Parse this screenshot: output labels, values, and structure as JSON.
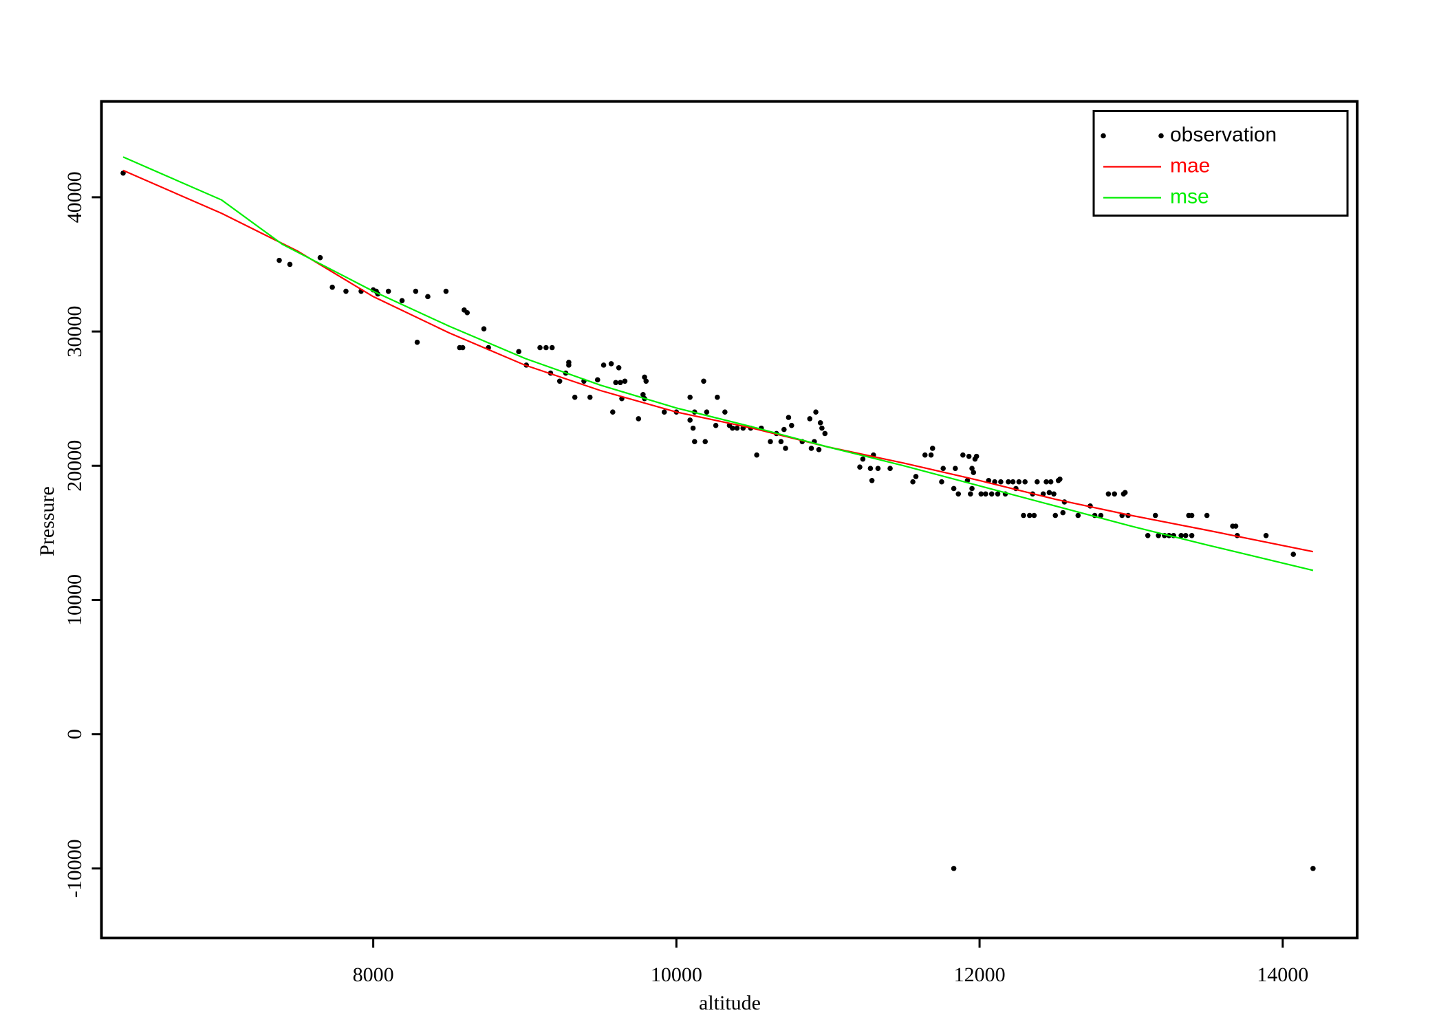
{
  "chart_data": {
    "type": "scatter",
    "x_label": "altitude",
    "y_label": "Pressure",
    "xlim": [
      6207,
      14491
    ],
    "ylim": [
      -15180,
      47140
    ],
    "xticks": [
      8000,
      10000,
      12000,
      14000
    ],
    "yticks": [
      -10000,
      0,
      10000,
      20000,
      30000,
      40000
    ],
    "legend_position": "upper right",
    "series": [
      {
        "name": "observation",
        "type": "scatter",
        "color": "#000000",
        "x": [
          6350,
          7380,
          7450,
          7650,
          7730,
          7820,
          7920,
          8000,
          8020,
          8030,
          8100,
          8190,
          8280,
          8290,
          8360,
          8480,
          8570,
          8590,
          8600,
          8620,
          8730,
          8760,
          8960,
          9010,
          9100,
          9140,
          9180,
          9170,
          9230,
          9270,
          9290,
          9290,
          9330,
          9390,
          9430,
          9480,
          9520,
          9570,
          9580,
          9600,
          9620,
          9630,
          9640,
          9660,
          9750,
          9780,
          9790,
          9790,
          9800,
          9920,
          10000,
          10090,
          10090,
          10110,
          10120,
          10120,
          10180,
          10190,
          10200,
          10260,
          10270,
          10320,
          10350,
          10370,
          10400,
          10440,
          10490,
          10530,
          10560,
          10620,
          10660,
          10690,
          10710,
          10720,
          10740,
          10760,
          10830,
          10880,
          10890,
          10910,
          10920,
          10940,
          10950,
          10960,
          10980,
          11210,
          11230,
          11280,
          11290,
          11300,
          11330,
          11410,
          11560,
          11580,
          11640,
          11680,
          11690,
          11750,
          11760,
          11830,
          11840,
          11860,
          11890,
          11920,
          11930,
          11940,
          11950,
          11950,
          11960,
          11970,
          11980,
          12010,
          12040,
          12060,
          12080,
          12100,
          12120,
          12140,
          12170,
          12190,
          12220,
          12240,
          12260,
          12290,
          12300,
          12330,
          12350,
          12360,
          12380,
          12420,
          12440,
          12460,
          12470,
          12490,
          12500,
          12520,
          12530,
          12550,
          12560,
          12650,
          12730,
          12760,
          12800,
          12850,
          12890,
          12940,
          12950,
          12960,
          12980,
          13110,
          13160,
          13180,
          13220,
          13250,
          13280,
          13330,
          13360,
          13380,
          13400,
          13400,
          13500,
          13670,
          13690,
          13700,
          13890,
          14070,
          11830,
          14200
        ],
        "values": [
          41800,
          35300,
          35000,
          35500,
          33300,
          33000,
          33000,
          33100,
          33000,
          32800,
          33000,
          32300,
          33000,
          29200,
          32600,
          33000,
          28800,
          28800,
          31600,
          31400,
          30200,
          28800,
          28500,
          27500,
          28800,
          28800,
          28800,
          26900,
          26300,
          26900,
          27500,
          27700,
          25100,
          26300,
          25100,
          26400,
          27500,
          27600,
          24000,
          26200,
          27300,
          26200,
          25000,
          26300,
          23500,
          25300,
          25000,
          26600,
          26300,
          24000,
          24000,
          23400,
          25100,
          22800,
          21800,
          24000,
          26300,
          21800,
          24000,
          23000,
          25100,
          24000,
          23000,
          22800,
          22800,
          22800,
          22800,
          20800,
          22800,
          21800,
          22400,
          21800,
          22700,
          21300,
          23600,
          23000,
          21800,
          23500,
          21300,
          21800,
          24000,
          21200,
          23200,
          22800,
          22400,
          19900,
          20500,
          19800,
          18900,
          20800,
          19800,
          19800,
          18800,
          19200,
          20800,
          20800,
          21300,
          18800,
          19800,
          18300,
          19800,
          17900,
          20800,
          18900,
          20700,
          17900,
          18300,
          19800,
          19500,
          20500,
          20700,
          17900,
          17900,
          18900,
          17900,
          18800,
          17900,
          18800,
          17900,
          18800,
          18800,
          18300,
          18800,
          16300,
          18800,
          16300,
          17900,
          16300,
          18800,
          17900,
          18800,
          18000,
          18800,
          17900,
          16300,
          18900,
          19000,
          16500,
          17300,
          16300,
          17000,
          16300,
          16300,
          17900,
          17900,
          16300,
          17900,
          18000,
          16300,
          14800,
          16300,
          14800,
          14800,
          14800,
          14800,
          14800,
          14800,
          16300,
          16300,
          14800,
          16300,
          15500,
          15500,
          14800,
          14800,
          13400,
          -10000,
          -10000
        ]
      },
      {
        "name": "mae",
        "type": "line",
        "color": "#ff0000",
        "x": [
          6350,
          7000,
          7500,
          8000,
          8500,
          9000,
          9500,
          10000,
          10500,
          11000,
          11500,
          12000,
          12500,
          13000,
          13500,
          14200
        ],
        "values": [
          42000,
          38800,
          36000,
          32600,
          29900,
          27500,
          25600,
          24000,
          22800,
          21400,
          20200,
          18900,
          17500,
          16300,
          15200,
          13600
        ]
      },
      {
        "name": "mse",
        "type": "line",
        "color": "#00ee00",
        "x": [
          6350,
          7000,
          7400,
          8000,
          8500,
          9000,
          9500,
          10000,
          10500,
          11000,
          11500,
          12000,
          12500,
          13000,
          13500,
          14200
        ],
        "values": [
          43000,
          39800,
          36500,
          33000,
          30400,
          28000,
          26000,
          24300,
          22900,
          21400,
          20000,
          18500,
          17000,
          15500,
          14100,
          12200
        ]
      }
    ]
  }
}
